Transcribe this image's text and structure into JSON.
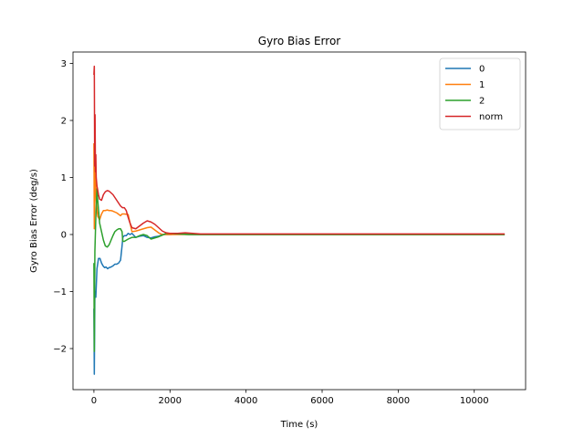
{
  "chart_data": {
    "type": "line",
    "title": "Gyro Bias Error",
    "xlabel": "Time (s)",
    "ylabel": "Gyro Bias Error (deg/s)",
    "xlim": [
      -550,
      11350
    ],
    "ylim": [
      -2.72,
      3.2
    ],
    "xticks": [
      0,
      2000,
      4000,
      6000,
      8000,
      10000
    ],
    "xtick_labels": [
      "0",
      "2000",
      "4000",
      "6000",
      "8000",
      "10000"
    ],
    "yticks": [
      -2,
      -1,
      0,
      1,
      2,
      3
    ],
    "ytick_labels": [
      "−2",
      "−1",
      "0",
      "1",
      "2",
      "3"
    ],
    "grid": false,
    "legend_position": "top-right",
    "series": [
      {
        "name": "0",
        "color": "#1f77b4",
        "x": [
          0,
          10,
          25,
          50,
          80,
          120,
          160,
          200,
          240,
          280,
          320,
          360,
          400,
          450,
          500,
          550,
          600,
          650,
          700,
          740,
          760,
          800,
          850,
          900,
          950,
          1000,
          1100,
          1200,
          1300,
          1400,
          1500,
          1600,
          1700,
          1800,
          2000,
          2200,
          2500,
          3000,
          4000,
          5000,
          6000,
          7000,
          8000,
          9000,
          10000,
          10800
        ],
        "values": [
          -1.3,
          -2.45,
          -1.0,
          -1.1,
          -0.6,
          -0.42,
          -0.42,
          -0.5,
          -0.55,
          -0.58,
          -0.57,
          -0.6,
          -0.58,
          -0.57,
          -0.55,
          -0.52,
          -0.52,
          -0.5,
          -0.45,
          -0.2,
          -0.05,
          -0.02,
          -0.02,
          0.02,
          0.0,
          0.02,
          -0.05,
          -0.03,
          -0.02,
          -0.05,
          -0.06,
          -0.04,
          -0.03,
          0.0,
          0.0,
          0.01,
          0.0,
          0.0,
          0.0,
          0.0,
          0.0,
          0.0,
          0.0,
          0.0,
          0.0,
          0.0
        ]
      },
      {
        "name": "1",
        "color": "#ff7f0e",
        "x": [
          0,
          10,
          25,
          40,
          60,
          80,
          100,
          150,
          200,
          250,
          300,
          350,
          400,
          450,
          500,
          600,
          700,
          740,
          800,
          900,
          1000,
          1100,
          1200,
          1300,
          1400,
          1500,
          1600,
          1700,
          1800,
          2000,
          2200,
          2500,
          3000,
          4000,
          5000,
          6000,
          7000,
          8000,
          9000,
          10000,
          10800
        ],
        "values": [
          1.6,
          0.1,
          0.8,
          1.2,
          0.6,
          0.45,
          0.32,
          0.26,
          0.36,
          0.42,
          0.42,
          0.43,
          0.42,
          0.42,
          0.41,
          0.38,
          0.33,
          0.36,
          0.36,
          0.35,
          0.05,
          0.06,
          0.08,
          0.1,
          0.12,
          0.13,
          0.08,
          0.03,
          0.0,
          0.0,
          0.0,
          0.0,
          0.0,
          0.0,
          0.0,
          0.0,
          0.0,
          0.0,
          0.0,
          0.0,
          0.0
        ]
      },
      {
        "name": "2",
        "color": "#2ca02c",
        "x": [
          0,
          10,
          25,
          50,
          80,
          100,
          150,
          200,
          250,
          300,
          350,
          400,
          450,
          500,
          550,
          600,
          650,
          700,
          740,
          760,
          800,
          900,
          1000,
          1100,
          1200,
          1300,
          1400,
          1500,
          1600,
          1700,
          1800,
          1900,
          2000,
          2200,
          2500,
          3000,
          4000,
          5000,
          6000,
          7000,
          8000,
          9000,
          10000,
          10800
        ],
        "values": [
          -0.5,
          -2.05,
          -0.3,
          0.3,
          0.8,
          0.6,
          0.2,
          0.05,
          -0.1,
          -0.2,
          -0.22,
          -0.18,
          -0.1,
          -0.02,
          0.05,
          0.08,
          0.1,
          0.1,
          0.05,
          -0.12,
          -0.12,
          -0.08,
          -0.05,
          -0.05,
          -0.02,
          0.0,
          -0.02,
          -0.08,
          -0.06,
          -0.04,
          -0.01,
          0.02,
          0.02,
          0.01,
          0.0,
          0.0,
          0.0,
          0.0,
          0.0,
          0.0,
          0.0,
          0.0,
          0.0,
          0.0
        ]
      },
      {
        "name": "norm",
        "color": "#d62728",
        "x": [
          0,
          10,
          20,
          30,
          40,
          50,
          60,
          80,
          100,
          120,
          150,
          200,
          250,
          300,
          350,
          400,
          450,
          500,
          550,
          600,
          650,
          700,
          750,
          800,
          850,
          900,
          950,
          1000,
          1100,
          1200,
          1300,
          1400,
          1500,
          1600,
          1700,
          1800,
          1900,
          2000,
          2200,
          2400,
          2600,
          2800,
          3000,
          4000,
          5000,
          6000,
          7000,
          8000,
          9000,
          10000,
          10800
        ],
        "values": [
          2.8,
          2.95,
          1.2,
          2.1,
          1.1,
          1.4,
          1.0,
          0.85,
          0.78,
          0.7,
          0.62,
          0.6,
          0.7,
          0.75,
          0.77,
          0.76,
          0.73,
          0.7,
          0.65,
          0.6,
          0.55,
          0.5,
          0.47,
          0.47,
          0.42,
          0.3,
          0.2,
          0.12,
          0.1,
          0.15,
          0.2,
          0.24,
          0.22,
          0.18,
          0.12,
          0.06,
          0.03,
          0.02,
          0.02,
          0.03,
          0.02,
          0.01,
          0.01,
          0.01,
          0.01,
          0.01,
          0.01,
          0.01,
          0.01,
          0.01,
          0.01
        ]
      }
    ]
  }
}
